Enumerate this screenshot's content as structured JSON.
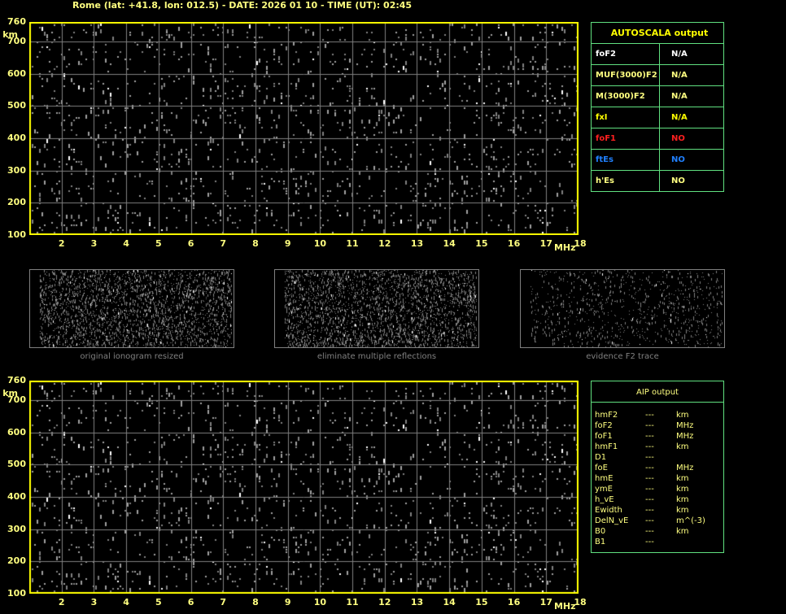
{
  "header": {
    "title": "Rome (lat: +41.8, lon: 012.5) - DATE: 2026 01 10 - TIME (UT): 02:45"
  },
  "ionogram": {
    "y_unit": "km",
    "x_unit": "MHz",
    "y_ticks": [
      "760",
      "700",
      "600",
      "500",
      "400",
      "300",
      "200",
      "100"
    ],
    "x_ticks": [
      "2",
      "3",
      "4",
      "5",
      "6",
      "7",
      "8",
      "9",
      "10",
      "11",
      "12",
      "13",
      "14",
      "15",
      "16",
      "17",
      "18"
    ],
    "x_range": [
      1,
      18
    ],
    "y_range": [
      100,
      760
    ],
    "colors": {
      "axis": "#ffff00",
      "grid": "#808080",
      "noise": "#a0a0a0",
      "echo": "#ffffff"
    }
  },
  "thumbnails": [
    {
      "caption": "original ionogram resized"
    },
    {
      "caption": "eliminate multiple reflections"
    },
    {
      "caption": "evidence F2 trace"
    }
  ],
  "autoscala": {
    "title": "AUTOSCALA output",
    "rows": [
      {
        "param": "foF2",
        "value": "N/A",
        "color": "#ffffff",
        "value_color": "#ffffff"
      },
      {
        "param": "MUF(3000)F2",
        "value": "N/A",
        "color": "#ffff80",
        "value_color": "#ffff80"
      },
      {
        "param": "M(3000)F2",
        "value": "N/A",
        "color": "#ffff80",
        "value_color": "#ffff80"
      },
      {
        "param": "fxI",
        "value": "N/A",
        "color": "#ffff00",
        "value_color": "#ffff00"
      },
      {
        "param": "foF1",
        "value": "NO",
        "color": "#ff2020",
        "value_color": "#ff2020"
      },
      {
        "param": "ftEs",
        "value": "NO",
        "color": "#2080ff",
        "value_color": "#2080ff"
      },
      {
        "param": "h'Es",
        "value": "NO",
        "color": "#ffff80",
        "value_color": "#ffff80"
      }
    ]
  },
  "aip": {
    "title": "AIP output",
    "rows": [
      {
        "param": "hmF2",
        "value": "---",
        "unit": "km"
      },
      {
        "param": "foF2",
        "value": "---",
        "unit": "MHz"
      },
      {
        "param": "foF1",
        "value": "---",
        "unit": "MHz"
      },
      {
        "param": "hmF1",
        "value": "---",
        "unit": "km"
      },
      {
        "param": "D1",
        "value": "---",
        "unit": ""
      },
      {
        "param": "foE",
        "value": "---",
        "unit": "MHz"
      },
      {
        "param": "hmE",
        "value": "---",
        "unit": "km"
      },
      {
        "param": "ymE",
        "value": "---",
        "unit": "km"
      },
      {
        "param": "h_vE",
        "value": "---",
        "unit": "km"
      },
      {
        "param": "Ewidth",
        "value": "---",
        "unit": "km"
      },
      {
        "param": "DelN_vE",
        "value": "---",
        "unit": "m^(-3)"
      },
      {
        "param": "B0",
        "value": "---",
        "unit": "km"
      },
      {
        "param": "B1",
        "value": "---",
        "unit": ""
      }
    ]
  }
}
